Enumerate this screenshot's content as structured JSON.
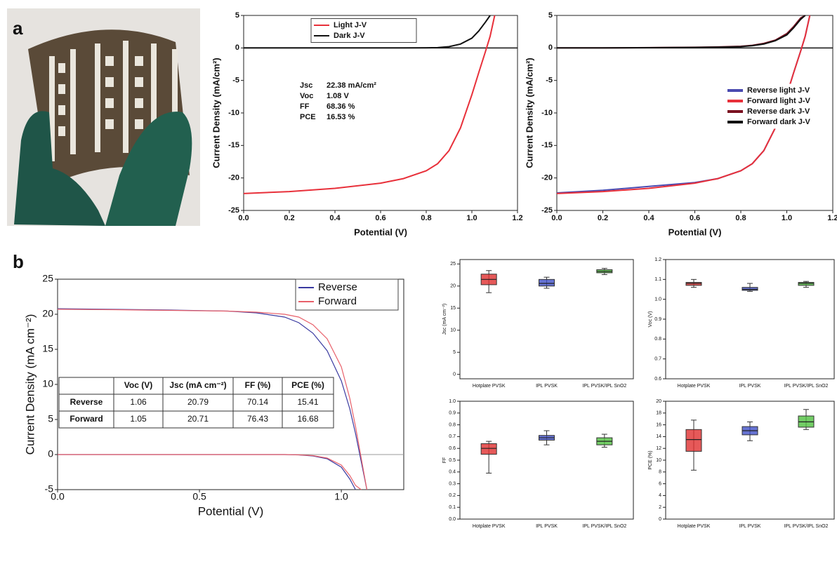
{
  "panel_labels": [
    "a",
    "b"
  ],
  "chart_data": [
    {
      "type": "line",
      "xlabel": "Potential (V)",
      "ylabel": "Current Density (mA/cm²)",
      "x": [
        0,
        0.2,
        0.4,
        0.6,
        0.7,
        0.8,
        0.85,
        0.9,
        0.95,
        1.0,
        1.03,
        1.06,
        1.08,
        1.1
      ],
      "series": [
        {
          "name": "Light J-V",
          "color": "#e8303a",
          "values": [
            -22.4,
            -22.1,
            -21.6,
            -20.8,
            -20.1,
            -18.9,
            -17.8,
            -15.8,
            -12.3,
            -7.2,
            -3.8,
            -0.5,
            1.8,
            5
          ]
        },
        {
          "name": "Dark J-V",
          "color": "#111111",
          "values": [
            0,
            0,
            0,
            0,
            0,
            0.02,
            0.05,
            0.2,
            0.6,
            1.5,
            2.6,
            4.0,
            5,
            null
          ]
        }
      ],
      "annotations": [
        {
          "label": "Jsc",
          "text": "22.38 mA/cm²"
        },
        {
          "label": "Voc",
          "text": "1.08 V"
        },
        {
          "label": "FF",
          "text": "68.36 %"
        },
        {
          "label": "PCE",
          "text": "16.53 %"
        }
      ],
      "xlim": [
        0,
        1.2
      ],
      "xticks": [
        {
          "value": 0,
          "label": "0.0"
        },
        0.2,
        0.4,
        0.6,
        0.8,
        {
          "value": 1,
          "label": "1.0"
        },
        1.2
      ],
      "ylim": [
        -25,
        5
      ],
      "yticks": [
        -25,
        -20,
        -15,
        -10,
        -5,
        0,
        5
      ],
      "zero_line": true,
      "legend": "upper center"
    },
    {
      "type": "line",
      "xlabel": "Potential (V)",
      "ylabel": "Current Density (mA/cm²)",
      "x": [
        0,
        0.2,
        0.4,
        0.6,
        0.7,
        0.8,
        0.85,
        0.9,
        0.95,
        1.0,
        1.03,
        1.06,
        1.08,
        1.1
      ],
      "series": [
        {
          "name": "Reverse light J-V",
          "color": "#4a4ab0",
          "values": [
            -22.3,
            -21.9,
            -21.3,
            -20.7,
            -20.1,
            -18.9,
            -17.8,
            -15.8,
            -12.3,
            -7.2,
            -3.8,
            -0.5,
            1.8,
            5
          ]
        },
        {
          "name": "Forward light J-V",
          "color": "#e8303a",
          "values": [
            -22.4,
            -22.1,
            -21.6,
            -20.8,
            -20.1,
            -18.9,
            -17.8,
            -15.8,
            -12.3,
            -7.2,
            -3.8,
            -0.5,
            1.8,
            5
          ]
        },
        {
          "name": "Reverse dark J-V",
          "color": "#7a1020",
          "values": [
            0,
            0,
            0.05,
            0.1,
            0.15,
            0.25,
            0.4,
            0.7,
            1.2,
            2.2,
            3.3,
            4.6,
            5,
            null
          ]
        },
        {
          "name": "Forward dark J-V",
          "color": "#111111",
          "values": [
            0,
            0,
            0.04,
            0.08,
            0.12,
            0.2,
            0.35,
            0.6,
            1.1,
            2.0,
            3.1,
            4.4,
            5,
            null
          ]
        }
      ],
      "xlim": [
        0,
        1.2
      ],
      "xticks": [
        {
          "value": 0,
          "label": "0.0"
        },
        0.2,
        0.4,
        0.6,
        0.8,
        {
          "value": 1,
          "label": "1.0"
        },
        1.2
      ],
      "ylim": [
        -25,
        5
      ],
      "yticks": [
        -25,
        -20,
        -15,
        -10,
        -5,
        0,
        5
      ],
      "zero_line": true,
      "legend": "center right"
    },
    {
      "type": "line",
      "xlabel": "Potential (V)",
      "ylabel": "Current Density (mA cm⁻²)",
      "x": [
        0,
        0.2,
        0.4,
        0.6,
        0.7,
        0.8,
        0.85,
        0.9,
        0.95,
        1.0,
        1.03,
        1.05,
        1.07,
        1.09
      ],
      "series": [
        {
          "name": "Reverse",
          "color": "#3a3aa0",
          "values": [
            20.79,
            20.7,
            20.6,
            20.45,
            20.2,
            19.6,
            18.8,
            17.3,
            14.8,
            10.5,
            6.5,
            3.0,
            -1,
            -5
          ],
          "dark_values": [
            0,
            0,
            0,
            0,
            0,
            0,
            -0.05,
            -0.2,
            -0.6,
            -1.8,
            -3.5,
            -5,
            null,
            null
          ]
        },
        {
          "name": "Forward",
          "color": "#e8606a",
          "values": [
            20.71,
            20.65,
            20.55,
            20.45,
            20.3,
            20.0,
            19.6,
            18.5,
            16.5,
            12.5,
            8,
            4,
            -0.5,
            -5
          ],
          "dark_values": [
            0,
            0,
            0,
            0,
            0,
            0,
            -0.04,
            -0.15,
            -0.5,
            -1.5,
            -3.0,
            -4.4,
            -5,
            null
          ]
        }
      ],
      "table": {
        "headers": [
          "Voc (V)",
          "Jsc (mA cm⁻²)",
          "FF (%)",
          "PCE (%)"
        ],
        "rows": [
          [
            "Reverse",
            1.06,
            20.79,
            70.14,
            15.41
          ],
          [
            "Forward",
            1.05,
            20.71,
            76.43,
            16.68
          ]
        ]
      },
      "xlim": [
        0,
        1.22
      ],
      "xticks": [
        {
          "value": 0,
          "label": "0.0"
        },
        0.5,
        {
          "value": 1,
          "label": "1.0"
        }
      ],
      "ylim": [
        -5,
        25
      ],
      "yticks": [
        -5,
        0,
        5,
        10,
        15,
        20,
        25
      ],
      "zero_line": true,
      "legend": "upper right"
    },
    {
      "type": "box",
      "ylabel": "Jsc (mA cm⁻²)",
      "categories": [
        "Hotplate PVSK",
        "IPL PVSK",
        "IPL PVSK/IPL SnO2"
      ],
      "colors": [
        "#e03030",
        "#4050c8",
        "#50c040"
      ],
      "boxes": [
        {
          "min": 18.5,
          "q1": 20.3,
          "median": 21.5,
          "q3": 22.7,
          "max": 23.5
        },
        {
          "min": 19.5,
          "q1": 20,
          "median": 20.6,
          "q3": 21.5,
          "max": 22
        },
        {
          "min": 22.6,
          "q1": 23,
          "median": 23.3,
          "q3": 23.7,
          "max": 24
        }
      ],
      "ylim": [
        -1,
        26
      ],
      "yticks": [
        0,
        5,
        10,
        15,
        20,
        25
      ]
    },
    {
      "type": "box",
      "ylabel": "Voc (V)",
      "categories": [
        "Hotplate PVSK",
        "IPL PVSK",
        "IPL PVSK/IPL SnO2"
      ],
      "colors": [
        "#e03030",
        "#4050c8",
        "#50c040"
      ],
      "boxes": [
        {
          "min": 1.06,
          "q1": 1.07,
          "median": 1.08,
          "q3": 1.085,
          "max": 1.1
        },
        {
          "min": 1.04,
          "q1": 1.045,
          "median": 1.05,
          "q3": 1.06,
          "max": 1.08
        },
        {
          "min": 1.06,
          "q1": 1.07,
          "median": 1.08,
          "q3": 1.085,
          "max": 1.09
        }
      ],
      "ylim": [
        0.6,
        1.2
      ],
      "yticks": [
        0.6,
        0.7,
        0.8,
        0.9,
        {
          "value": 1,
          "label": "1.0"
        },
        1.1,
        1.2
      ]
    },
    {
      "type": "box",
      "ylabel": "FF",
      "categories": [
        "Hotplate PVSK",
        "IPL PVSK",
        "IPL PVSK/IPL SnO2"
      ],
      "colors": [
        "#e03030",
        "#4050c8",
        "#50c040"
      ],
      "boxes": [
        {
          "min": 0.39,
          "q1": 0.55,
          "median": 0.6,
          "q3": 0.64,
          "max": 0.66
        },
        {
          "min": 0.63,
          "q1": 0.67,
          "median": 0.69,
          "q3": 0.71,
          "max": 0.75
        },
        {
          "min": 0.61,
          "q1": 0.63,
          "median": 0.66,
          "q3": 0.69,
          "max": 0.72
        }
      ],
      "ylim": [
        0,
        1
      ],
      "yticks": [
        {
          "value": 0,
          "label": "0.0"
        },
        0.1,
        0.2,
        0.3,
        0.4,
        0.5,
        0.6,
        0.7,
        0.8,
        0.9,
        {
          "value": 1,
          "label": "1.0"
        }
      ]
    },
    {
      "type": "box",
      "ylabel": "PCE (%)",
      "categories": [
        "Hotplate PVSK",
        "IPL PVSK",
        "IPL PVSK/IPL SnO2"
      ],
      "colors": [
        "#e03030",
        "#4050c8",
        "#50c040"
      ],
      "boxes": [
        {
          "min": 8.3,
          "q1": 11.5,
          "median": 13.5,
          "q3": 15.2,
          "max": 16.8
        },
        {
          "min": 13.3,
          "q1": 14.3,
          "median": 15,
          "q3": 15.7,
          "max": 16.5
        },
        {
          "min": 15.2,
          "q1": 15.6,
          "median": 16.5,
          "q3": 17.5,
          "max": 18.6
        }
      ],
      "ylim": [
        0,
        20
      ],
      "yticks": [
        0,
        2,
        4,
        6,
        8,
        10,
        12,
        14,
        16,
        18,
        20
      ]
    }
  ]
}
